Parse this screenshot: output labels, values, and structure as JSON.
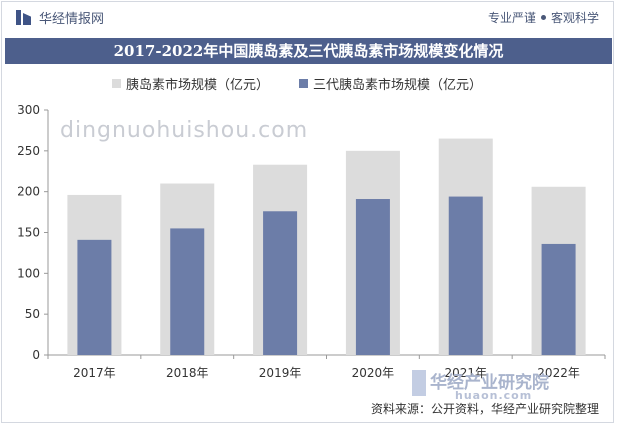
{
  "header": {
    "brand": "华经情报网",
    "slogan_left": "专业严谨",
    "slogan_right": "客观科学"
  },
  "chart_data": {
    "type": "bar",
    "title": "2017-2022年中国胰岛素及三代胰岛素市场规模变化情况",
    "categories": [
      "2017年",
      "2018年",
      "2019年",
      "2020年",
      "2021年",
      "2022年"
    ],
    "series": [
      {
        "name": "胰岛素市场规模（亿元）",
        "values": [
          196,
          210,
          233,
          250,
          265,
          206
        ],
        "color": "#dcdcdc"
      },
      {
        "name": "三代胰岛素市场规模（亿元）",
        "values": [
          141,
          155,
          176,
          191,
          194,
          136
        ],
        "color": "#6c7da8"
      }
    ],
    "ylim": [
      0,
      300
    ],
    "yticks": [
      0,
      50,
      100,
      150,
      200,
      250,
      300
    ],
    "grid": false,
    "legend": "top-left"
  },
  "watermarks": {
    "site": "dingnuohuishou.com",
    "logo_text": "华经产业研究院",
    "logo_url": "huaon.com"
  },
  "footer": {
    "source": "资料来源：公开资料，华经产业研究院整理"
  }
}
